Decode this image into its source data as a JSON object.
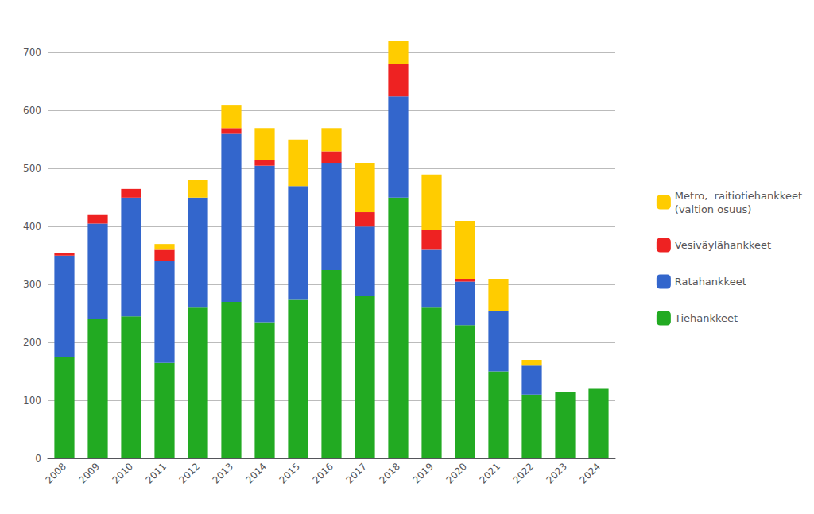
{
  "chart_data": {
    "type": "bar",
    "stacked": true,
    "categories": [
      "2008",
      "2009",
      "2010",
      "2011",
      "2012",
      "2013",
      "2014",
      "2015",
      "2016",
      "2017",
      "2018",
      "2019",
      "2020",
      "2021",
      "2022",
      "2023",
      "2024"
    ],
    "series": [
      {
        "name": "Tiehankkeet",
        "color": "#22aa22",
        "values": [
          175,
          240,
          245,
          165,
          260,
          270,
          235,
          275,
          325,
          280,
          450,
          260,
          230,
          150,
          110,
          115,
          120
        ]
      },
      {
        "name": "Ratahankkeet",
        "color": "#3366cc",
        "values": [
          175,
          165,
          205,
          175,
          190,
          290,
          270,
          195,
          185,
          120,
          175,
          100,
          75,
          105,
          50,
          0,
          0
        ]
      },
      {
        "name": "Vesiväylähankkeet",
        "color": "#ee2222",
        "values": [
          5,
          15,
          15,
          20,
          0,
          10,
          10,
          0,
          20,
          25,
          55,
          35,
          5,
          0,
          0,
          0,
          0
        ]
      },
      {
        "name": "Metro,  raitiotiehankkeet\n(valtion osuus)",
        "color": "#ffcc00",
        "values": [
          0,
          0,
          0,
          10,
          30,
          40,
          55,
          80,
          40,
          85,
          40,
          95,
          100,
          55,
          10,
          0,
          0
        ]
      }
    ],
    "ylim": [
      0,
      750
    ],
    "yticks": [
      0,
      100,
      200,
      300,
      400,
      500,
      600,
      700
    ],
    "grid": true,
    "legend": "right"
  }
}
